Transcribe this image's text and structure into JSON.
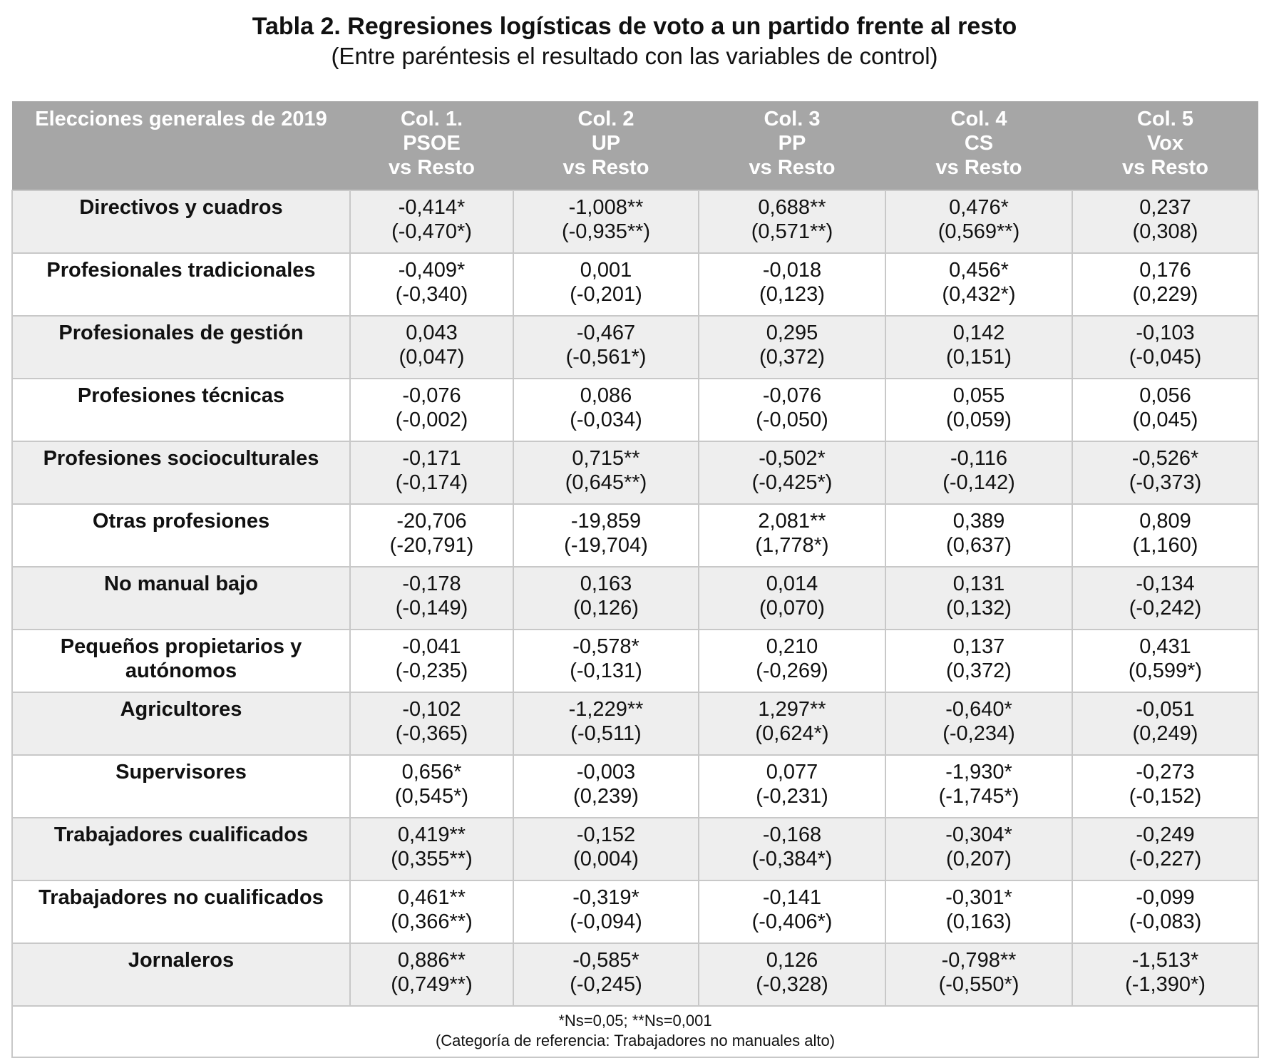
{
  "title": "Tabla 2. Regresiones logísticas de voto a un partido frente al resto",
  "subtitle": "(Entre paréntesis el resultado con las variables de control)",
  "header": {
    "label": "Elecciones generales de 2019",
    "columns": [
      {
        "line1": "Col. 1.",
        "line2": "PSOE",
        "line3": "vs Resto"
      },
      {
        "line1": "Col. 2",
        "line2": "UP",
        "line3": "vs Resto"
      },
      {
        "line1": "Col. 3",
        "line2": "PP",
        "line3": "vs Resto"
      },
      {
        "line1": "Col. 4",
        "line2": "CS",
        "line3": "vs Resto"
      },
      {
        "line1": "Col. 5",
        "line2": "Vox",
        "line3": "vs Resto"
      }
    ]
  },
  "rows": [
    {
      "label": [
        "Directivos y cuadros"
      ],
      "cells": [
        [
          "-0,414*",
          "(-0,470*)"
        ],
        [
          "-1,008**",
          "(-0,935**)"
        ],
        [
          "0,688**",
          "(0,571**)"
        ],
        [
          "0,476*",
          "(0,569**)"
        ],
        [
          "0,237",
          "(0,308)"
        ]
      ]
    },
    {
      "label": [
        "Profesionales tradicionales"
      ],
      "cells": [
        [
          "-0,409*",
          "(-0,340)"
        ],
        [
          "0,001",
          "(-0,201)"
        ],
        [
          "-0,018",
          "(0,123)"
        ],
        [
          "0,456*",
          "(0,432*)"
        ],
        [
          "0,176",
          "(0,229)"
        ]
      ]
    },
    {
      "label": [
        "Profesionales de gestión"
      ],
      "cells": [
        [
          "0,043",
          "(0,047)"
        ],
        [
          "-0,467",
          "(-0,561*)"
        ],
        [
          "0,295",
          "(0,372)"
        ],
        [
          "0,142",
          "(0,151)"
        ],
        [
          "-0,103",
          "(-0,045)"
        ]
      ]
    },
    {
      "label": [
        "Profesiones técnicas"
      ],
      "cells": [
        [
          "-0,076",
          "(-0,002)"
        ],
        [
          "0,086",
          "(-0,034)"
        ],
        [
          "-0,076",
          "(-0,050)"
        ],
        [
          "0,055",
          "(0,059)"
        ],
        [
          "0,056",
          "(0,045)"
        ]
      ]
    },
    {
      "label": [
        "Profesiones socioculturales"
      ],
      "cells": [
        [
          "-0,171",
          "(-0,174)"
        ],
        [
          "0,715**",
          "(0,645**)"
        ],
        [
          "-0,502*",
          "(-0,425*)"
        ],
        [
          "-0,116",
          "(-0,142)"
        ],
        [
          "-0,526*",
          "(-0,373)"
        ]
      ]
    },
    {
      "label": [
        "Otras profesiones"
      ],
      "cells": [
        [
          "-20,706",
          "(-20,791)"
        ],
        [
          "-19,859",
          "(-19,704)"
        ],
        [
          "2,081**",
          "(1,778*)"
        ],
        [
          "0,389",
          "(0,637)"
        ],
        [
          "0,809",
          "(1,160)"
        ]
      ]
    },
    {
      "label": [
        "No manual bajo"
      ],
      "cells": [
        [
          "-0,178",
          "(-0,149)"
        ],
        [
          "0,163",
          "(0,126)"
        ],
        [
          "0,014",
          "(0,070)"
        ],
        [
          "0,131",
          "(0,132)"
        ],
        [
          "-0,134",
          "(-0,242)"
        ]
      ]
    },
    {
      "label": [
        "Pequeños propietarios y",
        "autónomos"
      ],
      "cells": [
        [
          "-0,041",
          "(-0,235)"
        ],
        [
          "-0,578*",
          "(-0,131)"
        ],
        [
          "0,210",
          "(-0,269)"
        ],
        [
          "0,137",
          "(0,372)"
        ],
        [
          "0,431",
          "(0,599*)"
        ]
      ]
    },
    {
      "label": [
        "Agricultores"
      ],
      "cells": [
        [
          "-0,102",
          "(-0,365)"
        ],
        [
          "-1,229**",
          "(-0,511)"
        ],
        [
          "1,297**",
          "(0,624*)"
        ],
        [
          "-0,640*",
          "(-0,234)"
        ],
        [
          "-0,051",
          "(0,249)"
        ]
      ]
    },
    {
      "label": [
        "Supervisores"
      ],
      "cells": [
        [
          "0,656*",
          "(0,545*)"
        ],
        [
          "-0,003",
          "(0,239)"
        ],
        [
          "0,077",
          "(-0,231)"
        ],
        [
          "-1,930*",
          "(-1,745*)"
        ],
        [
          "-0,273",
          "(-0,152)"
        ]
      ]
    },
    {
      "label": [
        "Trabajadores cualificados"
      ],
      "cells": [
        [
          "0,419**",
          "(0,355**)"
        ],
        [
          "-0,152",
          "(0,004)"
        ],
        [
          "-0,168",
          "(-0,384*)"
        ],
        [
          "-0,304*",
          "(0,207)"
        ],
        [
          "-0,249",
          "(-0,227)"
        ]
      ]
    },
    {
      "label": [
        "Trabajadores no cualificados"
      ],
      "cells": [
        [
          "0,461**",
          "(0,366**)"
        ],
        [
          "-0,319*",
          "(-0,094)"
        ],
        [
          "-0,141",
          "(-0,406*)"
        ],
        [
          "-0,301*",
          "(0,163)"
        ],
        [
          "-0,099",
          "(-0,083)"
        ]
      ]
    },
    {
      "label": [
        "Jornaleros"
      ],
      "cells": [
        [
          "0,886**",
          "(0,749**)"
        ],
        [
          "-0,585*",
          "(-0,245)"
        ],
        [
          "0,126",
          "(-0,328)"
        ],
        [
          "-0,798**",
          "(-0,550*)"
        ],
        [
          "-1,513*",
          "(-1,390*)"
        ]
      ]
    }
  ],
  "footer": {
    "line1": "*Ns=0,05; **Ns=0,001",
    "line2": "(Categoría de referencia: Trabajadores no manuales alto)"
  },
  "colors": {
    "header_bg": "#a6a6a6",
    "shaded_row": "#eeeeee",
    "grid_line": "#c8c8c8"
  }
}
